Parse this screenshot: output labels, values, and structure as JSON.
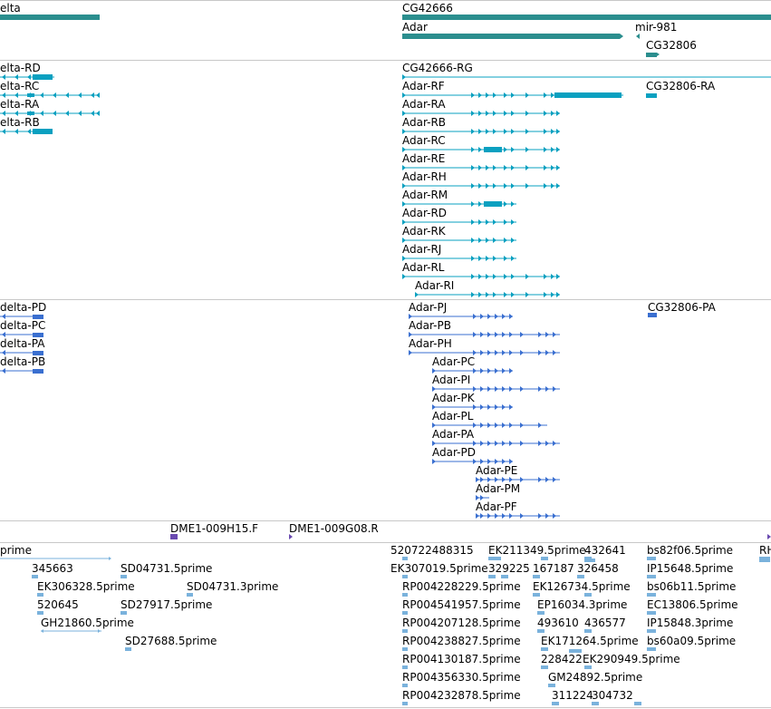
{
  "colors": {
    "gene": "#2b8e8e",
    "transcript": "#0aa0c0",
    "protein": "#3a6fd0",
    "marker": "#6a4ab0",
    "est": "#7ab2dc"
  },
  "tracks": {
    "genes": {
      "labels": [
        "elta",
        "CG42666",
        "Adar",
        "mir-981",
        "CG32806"
      ]
    },
    "transcripts": {
      "labels": [
        "elta-RD",
        "elta-RC",
        "elta-RA",
        "elta-RB",
        "CG42666-RG",
        "Adar-RF",
        "CG32806-RA",
        "Adar-RA",
        "Adar-RB",
        "Adar-RC",
        "Adar-RE",
        "Adar-RH",
        "Adar-RM",
        "Adar-RD",
        "Adar-RK",
        "Adar-RJ",
        "Adar-RL",
        "Adar-RI"
      ]
    },
    "proteins": {
      "labels": [
        "delta-PD",
        "delta-PC",
        "delta-PA",
        "delta-PB",
        "Adar-PJ",
        "Adar-PB",
        "Adar-PH",
        "Adar-PC",
        "Adar-PI",
        "Adar-PK",
        "Adar-PL",
        "Adar-PA",
        "Adar-PD",
        "Adar-PE",
        "Adar-PM",
        "Adar-PF",
        "CG32806-PA"
      ]
    },
    "markers": {
      "labels": [
        "DME1-009H15.F",
        "DME1-009G08.R"
      ]
    },
    "ests": {
      "labels": [
        "prime",
        "345663",
        "SD04731.5prime",
        "EK306328.5prime",
        "SD04731.3prime",
        "520645",
        "SD27917.5prime",
        "GH21860.5prime",
        "SD27688.5prime",
        "520722488315",
        "EK211349.5prime",
        "432641",
        "bs82f06.5prime",
        "RH",
        "EK307019.5prime",
        "329225",
        "167187",
        "326458",
        "IP15648.5prime",
        "RP004228229.5prime",
        "EK126734.5prime",
        "bs06b11.5prime",
        "RP004541957.5prime",
        "EP16034.3prime",
        "EC13806.5prime",
        "RP004207128.5prime",
        "493610",
        "436577",
        "IP15848.3prime",
        "RP004238827.5prime",
        "EK171264.5prime",
        "bs60a09.5prime",
        "RP004130187.5prime",
        "228422",
        "EK290949.5prime",
        "RP004356330.5prime",
        "GM24892.5prime",
        "RP004232878.5prime",
        "311224",
        "304732"
      ]
    }
  }
}
